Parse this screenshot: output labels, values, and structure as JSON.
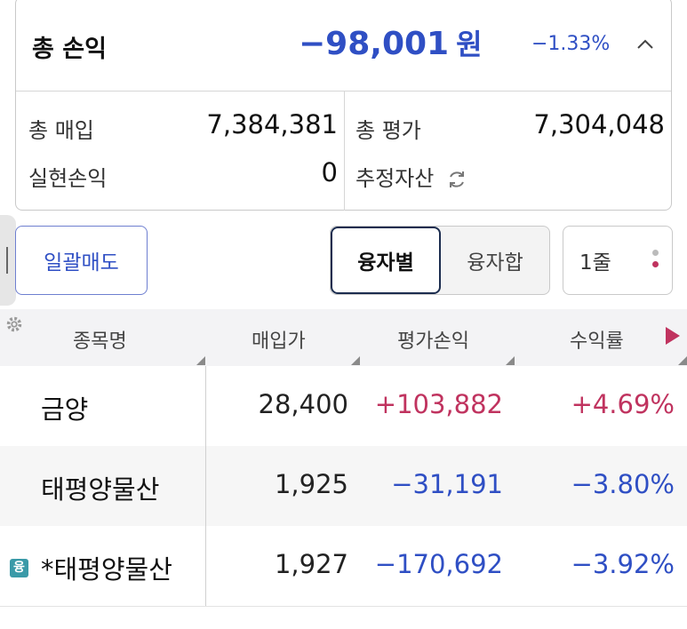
{
  "summary": {
    "title": "총 손익",
    "profit_amount": "−98,001",
    "profit_unit": "원",
    "profit_rate": "−1.33%",
    "total_purchase_label": "총 매입",
    "total_purchase_value": "7,384,381",
    "total_eval_label": "총 평가",
    "total_eval_value": "7,304,048",
    "realized_label": "실현손익",
    "realized_value": "0",
    "estimated_assets_label": "추정자산"
  },
  "controls": {
    "bulk_sell_label": "일괄매도",
    "by_loan_label": "융자별",
    "loan_sum_label": "융자합",
    "line_label": "1줄"
  },
  "table": {
    "headers": [
      "종목명",
      "매입가",
      "평가손익",
      "수익률"
    ],
    "rows": [
      {
        "name": "금양",
        "price": "28,400",
        "pnl": "+103,882",
        "rate": "+4.69%"
      },
      {
        "name": "태평양물산",
        "price": "1,925",
        "pnl": "−31,191",
        "rate": "−3.80%"
      },
      {
        "name": "*태평양물산",
        "badge": "융",
        "price": "1,927",
        "pnl": "−170,692",
        "rate": "−3.92%"
      }
    ]
  },
  "colors": {
    "positive": "#c0335f",
    "negative": "#2f4fc4",
    "accent": "#1c2d4f"
  }
}
